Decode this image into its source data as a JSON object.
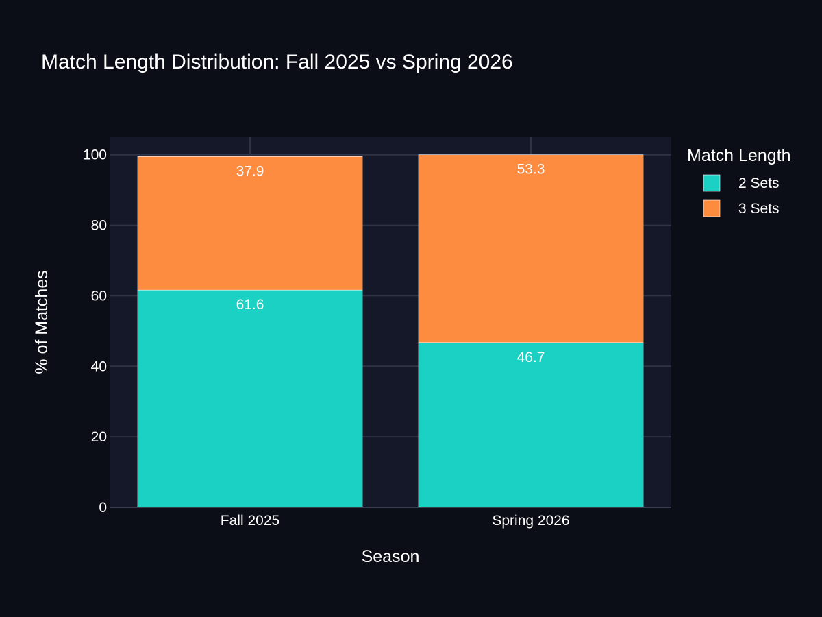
{
  "chart_data": {
    "type": "bar",
    "stacked": true,
    "title": "Match Length Distribution: Fall 2025 vs Spring 2026",
    "xlabel": "Season",
    "ylabel": "% of Matches",
    "categories": [
      "Fall 2025",
      "Spring 2026"
    ],
    "ylim": [
      0,
      105
    ],
    "yticks": [
      0,
      20,
      40,
      60,
      80,
      100
    ],
    "ytick_labels": [
      "0",
      "20",
      "40",
      "60",
      "80",
      "100"
    ],
    "grid": true,
    "legend": {
      "title": "Match Length",
      "position": "right-top"
    },
    "series": [
      {
        "name": "2 Sets",
        "color": "#1bd1c4",
        "values": [
          61.6,
          46.7
        ],
        "labels": [
          "61.6",
          "46.7"
        ]
      },
      {
        "name": "3 Sets",
        "color": "#fd8c40",
        "values": [
          37.9,
          53.3
        ],
        "labels": [
          "37.9",
          "53.3"
        ]
      }
    ],
    "colors": {
      "background": "#0b0d17",
      "plot_background": "#151829",
      "grid": "#2e3244",
      "bar_outline": "#ffffff"
    }
  }
}
